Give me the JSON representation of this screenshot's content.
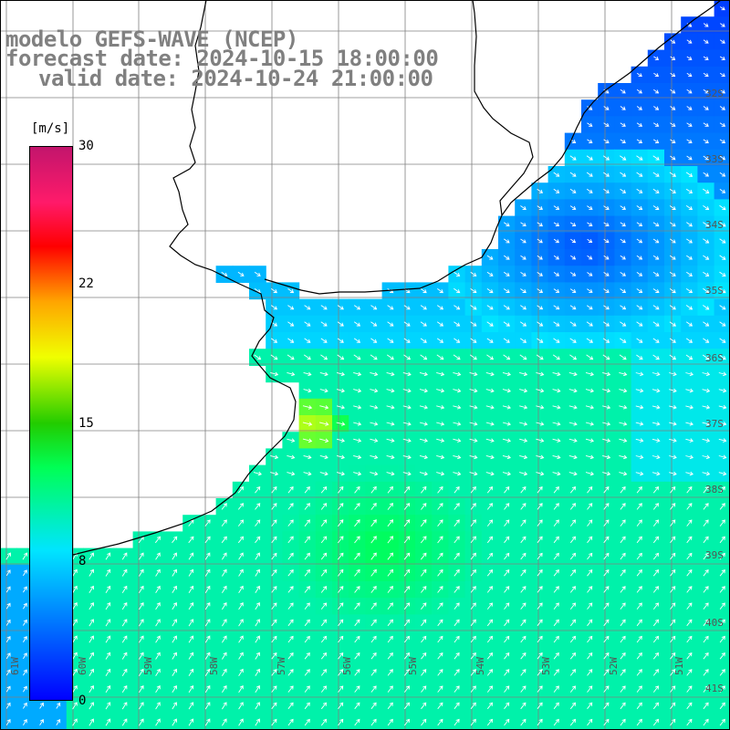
{
  "titles": {
    "line1": "modelo GEFS-WAVE (NCEP)",
    "line2": "forecast date: 2024-10-15 18:00:00",
    "line3": "valid date: 2024-10-24 21:00:00"
  },
  "colorbar": {
    "unit": "[m/s]",
    "ticks": [
      "30",
      "22",
      "15",
      "8",
      "0"
    ],
    "range": [
      0,
      30
    ],
    "colors": [
      "#0000ff",
      "#00e5ff",
      "#00ff55",
      "#22cc00",
      "#f0ff00",
      "#ffa500",
      "#ff0000",
      "#c2156c"
    ]
  },
  "lon_labels": [
    "61W",
    "60W",
    "59W",
    "58W",
    "57W",
    "56W",
    "55W",
    "54W",
    "53W",
    "52W",
    "51W"
  ],
  "lat_labels": [
    "32S",
    "33S",
    "34S",
    "35S",
    "36S",
    "37S",
    "38S",
    "39S",
    "40S",
    "41S"
  ],
  "colors": {
    "land": "#ffffff",
    "coast": "#000000",
    "grid": "#808080",
    "arrow": "#ffffff",
    "title": "#808080"
  }
}
